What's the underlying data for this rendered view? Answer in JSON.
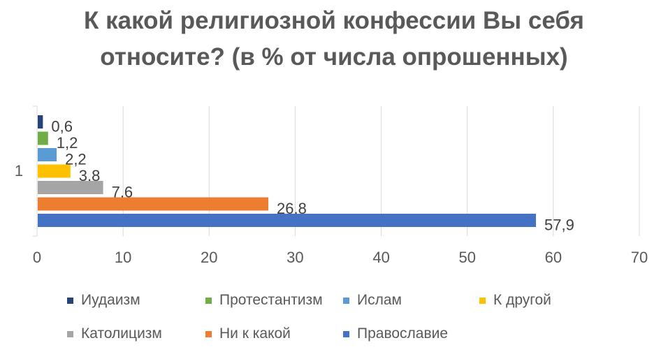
{
  "chart_data": {
    "type": "bar",
    "orientation": "horizontal",
    "title": "К какой религиозной конфессии Вы себя относите? (в % от числа опрошенных)",
    "title_lines": [
      "К какой религиозной конфессии Вы себя",
      "относите? (в % от числа опрошенных)"
    ],
    "categories": [
      "1"
    ],
    "series": [
      {
        "name": "Иудаизм",
        "value": 0.6,
        "label": "0,6",
        "color": "#264478"
      },
      {
        "name": "Протестантизм",
        "value": 1.2,
        "label": "1,2",
        "color": "#70AD47"
      },
      {
        "name": "Ислам",
        "value": 2.2,
        "label": "2,2",
        "color": "#5B9BD5"
      },
      {
        "name": "К другой",
        "value": 3.8,
        "label": "3,8",
        "color": "#FFC000"
      },
      {
        "name": "Католицизм",
        "value": 7.6,
        "label": "7,6",
        "color": "#A5A5A5"
      },
      {
        "name": "Ни к какой",
        "value": 26.8,
        "label": "26,8",
        "color": "#ED7D31"
      },
      {
        "name": "Православие",
        "value": 57.9,
        "label": "57,9",
        "color": "#4472C4"
      }
    ],
    "x_ticks": [
      "0",
      "10",
      "20",
      "30",
      "40",
      "50",
      "60",
      "70"
    ],
    "xlim": [
      0,
      70
    ],
    "grid": true,
    "legend_position": "bottom"
  }
}
